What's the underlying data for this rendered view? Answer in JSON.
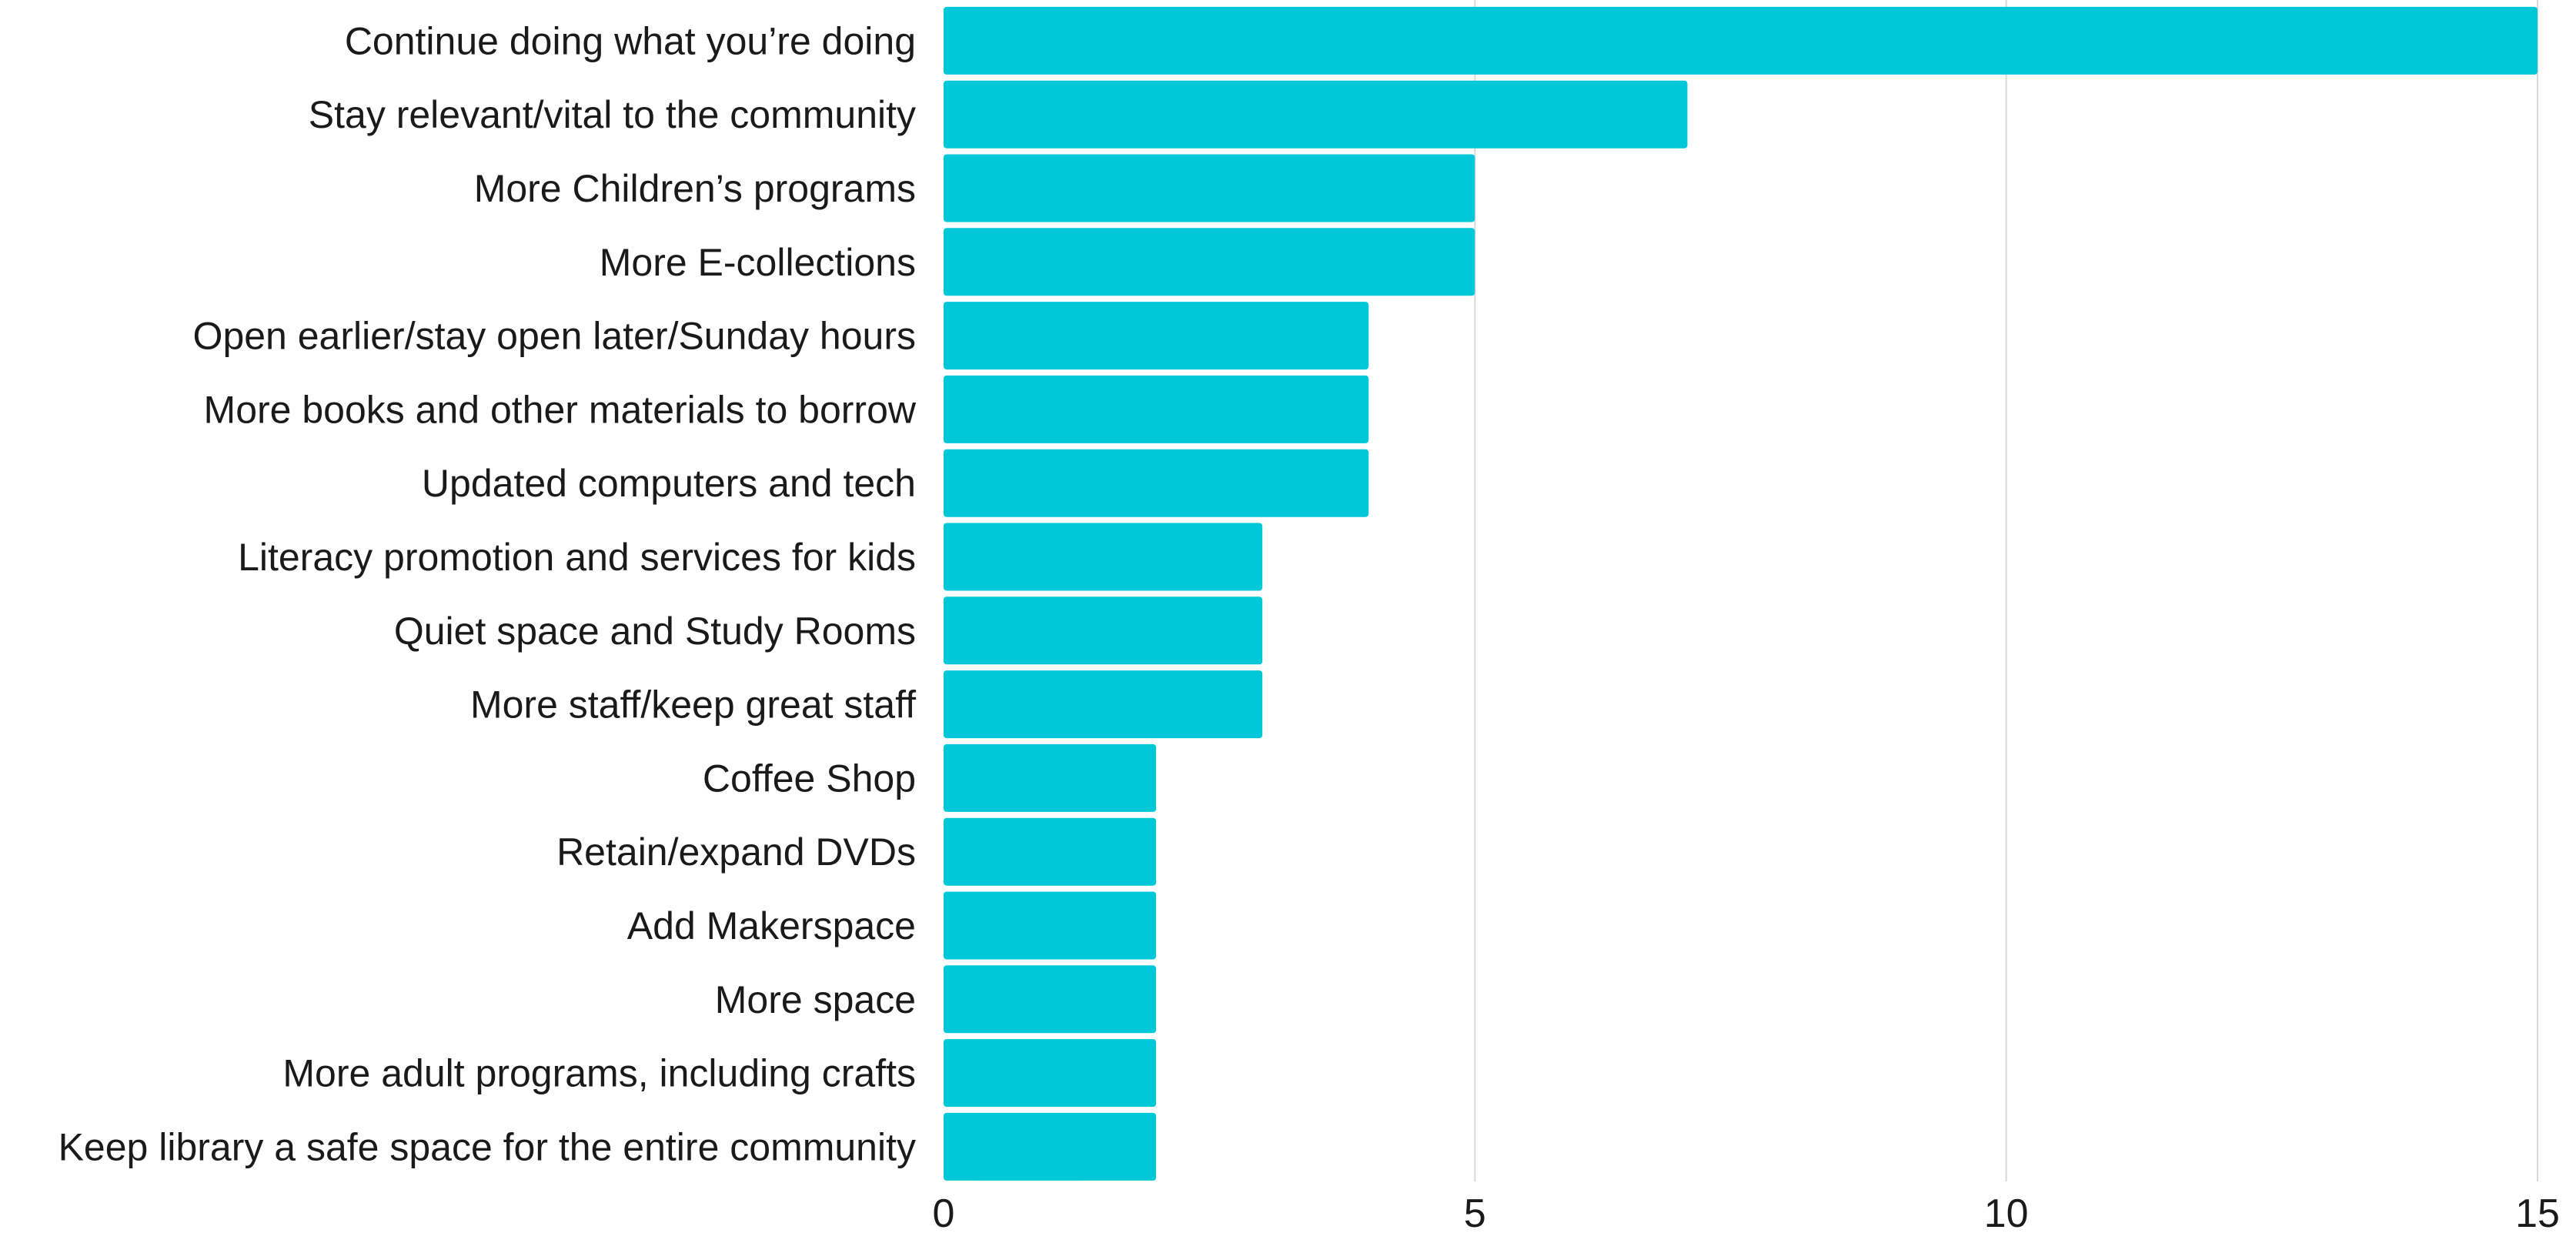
{
  "chart_data": {
    "type": "bar",
    "orientation": "horizontal",
    "title": "",
    "xlabel": "",
    "ylabel": "",
    "xlim": [
      0,
      15
    ],
    "x_ticks": [
      0,
      5,
      10,
      15
    ],
    "grid": "vertical",
    "legend": "none",
    "bar_color": "#00c8d9",
    "gridline_color": "#d9d9d9",
    "label_color": "#1a1a1a",
    "categories": [
      "Continue doing what you’re doing",
      "Stay relevant/vital to the community",
      "More Children’s programs",
      "More E-collections",
      "Open earlier/stay open later/Sunday hours",
      "More books and other materials to borrow",
      "Updated computers and tech",
      "Literacy promotion and services for kids",
      "Quiet space and Study Rooms",
      "More staff/keep great staff",
      "Coffee Shop",
      "Retain/expand DVDs",
      "Add Makerspace",
      "More space",
      "More adult programs, including crafts",
      "Keep library a safe space for the entire community"
    ],
    "values": [
      15,
      7,
      5,
      5,
      4,
      4,
      4,
      3,
      3,
      3,
      2,
      2,
      2,
      2,
      2,
      2
    ]
  }
}
